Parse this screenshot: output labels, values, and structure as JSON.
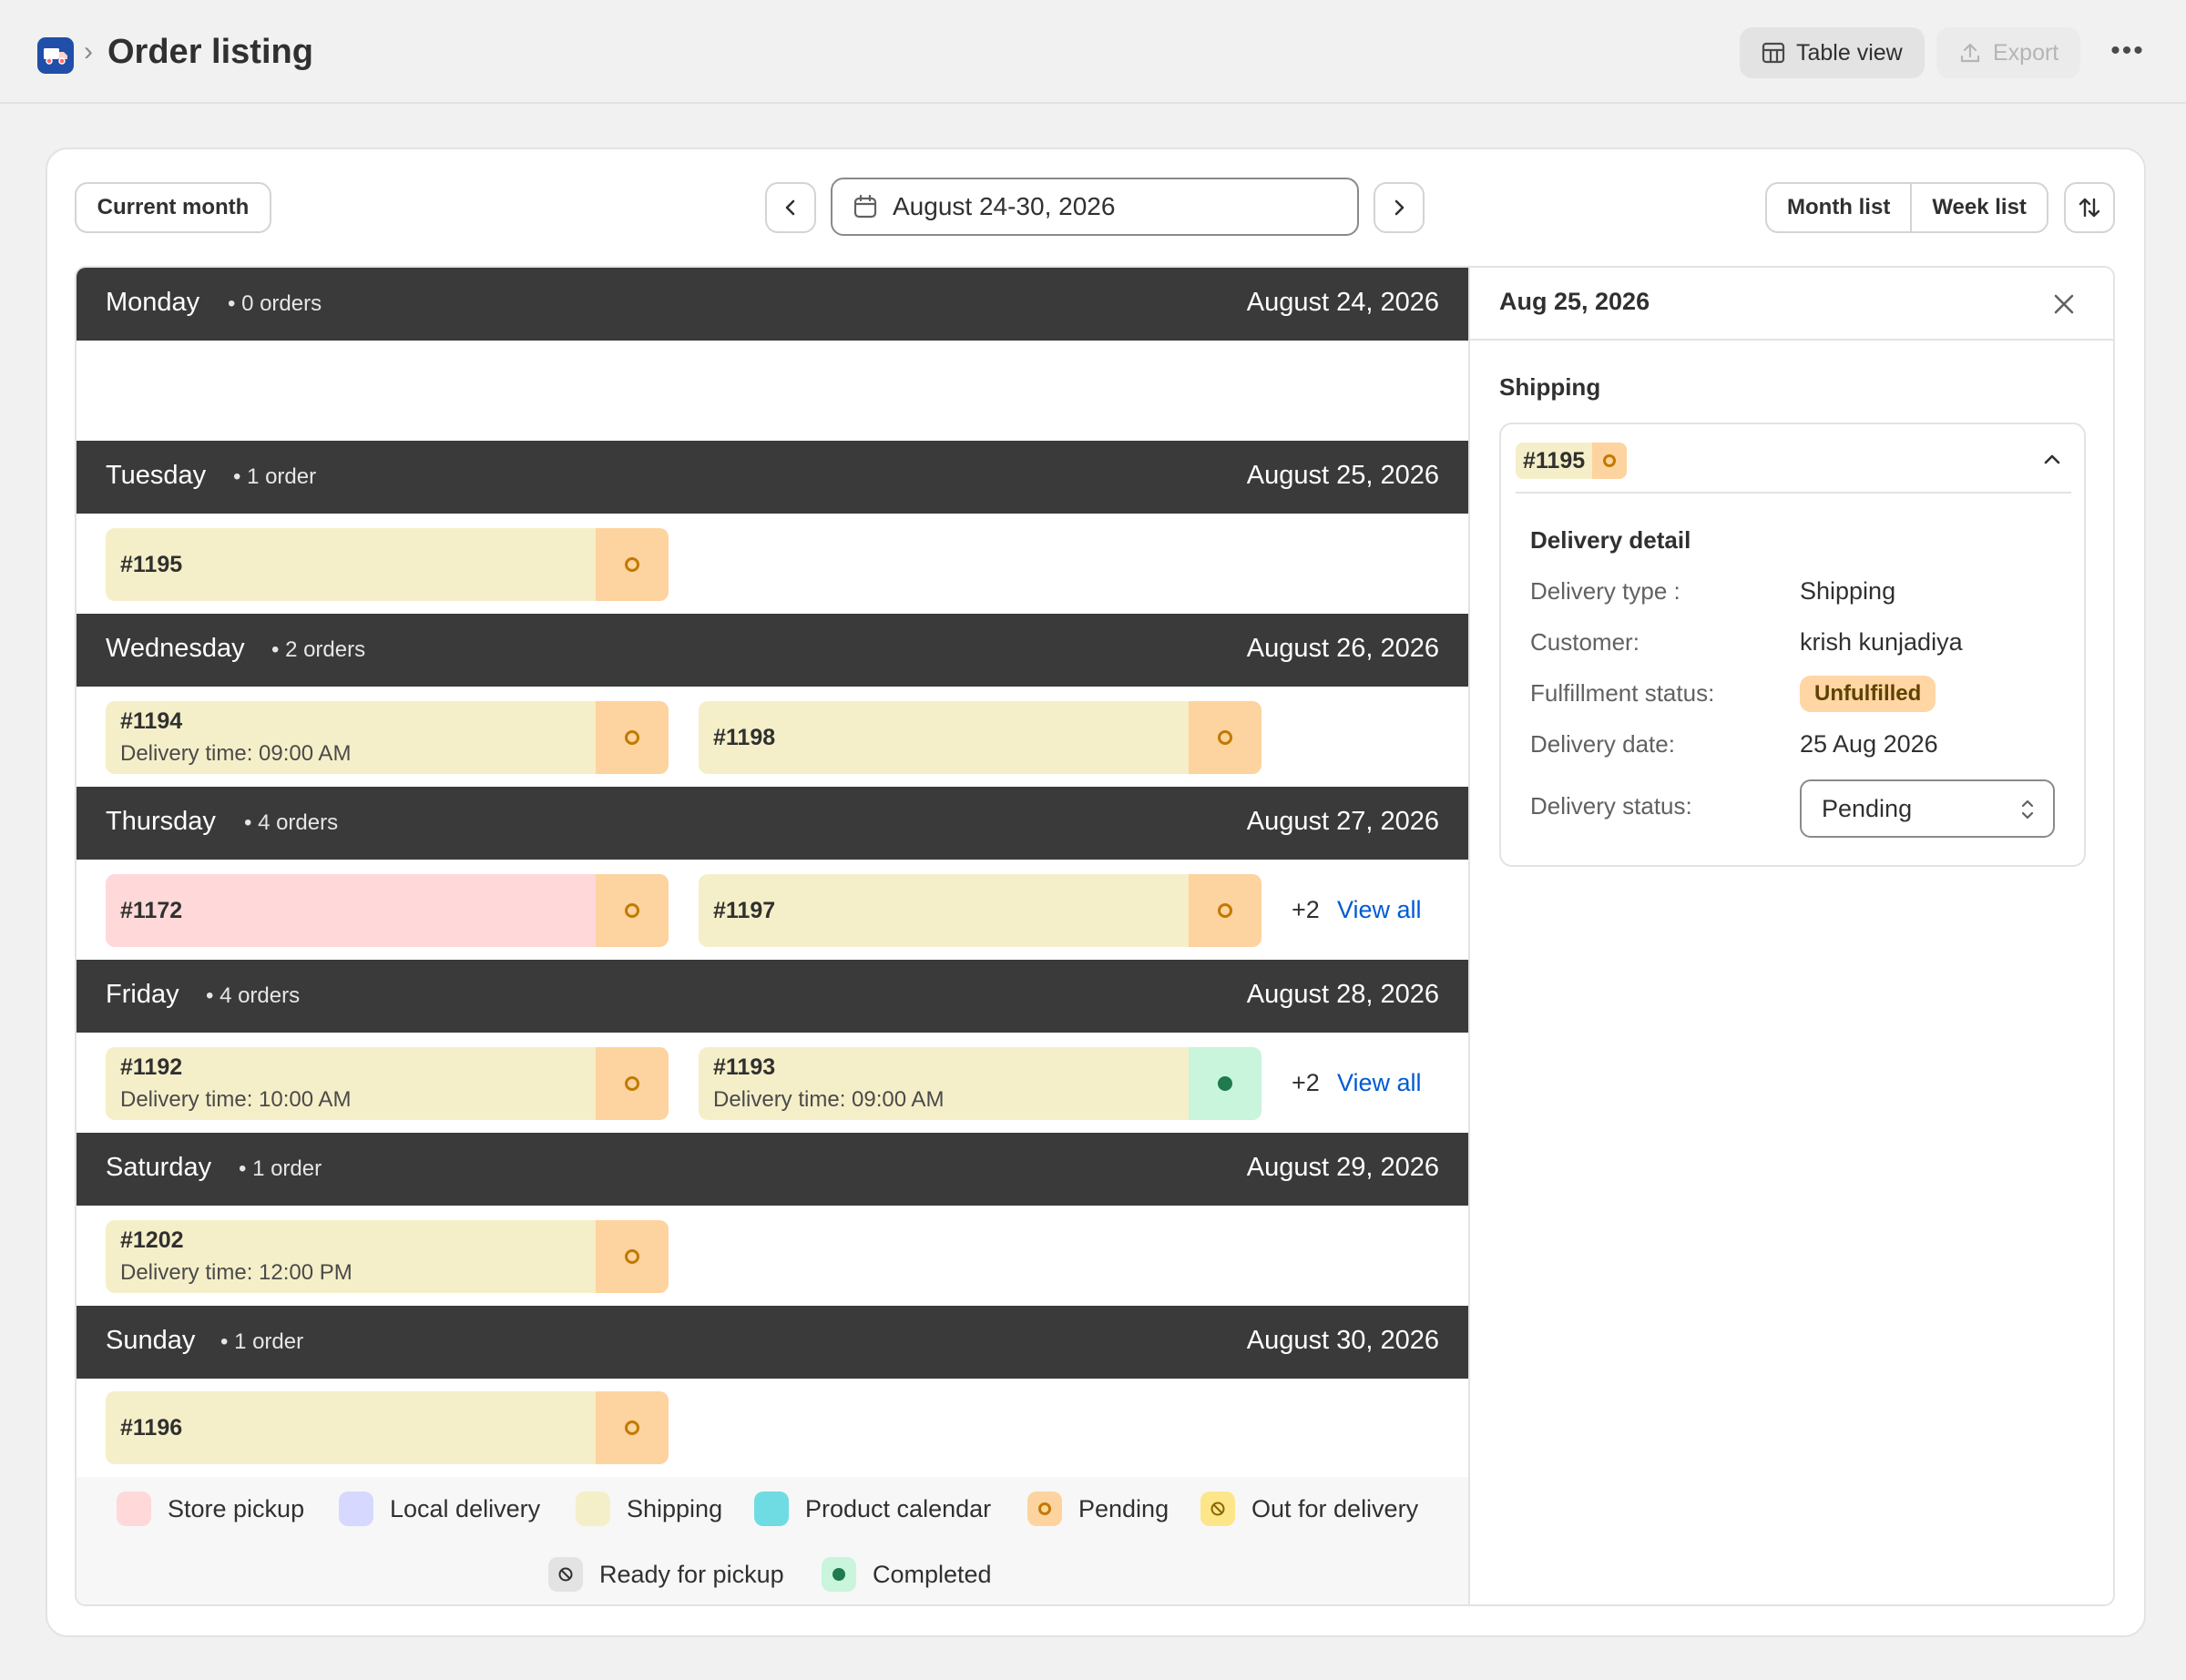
{
  "header": {
    "title": "Order listing",
    "table_view_label": "Table view",
    "export_label": "Export",
    "more_label": "•••"
  },
  "toolbar": {
    "current_month_label": "Current month",
    "date_range": "August 24-30, 2026",
    "month_list_label": "Month list",
    "week_list_label": "Week list"
  },
  "days": [
    {
      "name": "Monday",
      "count": "• 0 orders",
      "date": "August 24, 2026"
    },
    {
      "name": "Tuesday",
      "count": "• 1 order",
      "date": "August 25, 2026"
    },
    {
      "name": "Wednesday",
      "count": "• 2 orders",
      "date": "August 26, 2026"
    },
    {
      "name": "Thursday",
      "count": "• 4 orders",
      "date": "August 27, 2026"
    },
    {
      "name": "Friday",
      "count": "• 4 orders",
      "date": "August 28, 2026"
    },
    {
      "name": "Saturday",
      "count": "• 1 order",
      "date": "August 29, 2026"
    },
    {
      "name": "Sunday",
      "count": "• 1 order",
      "date": "August 30, 2026"
    }
  ],
  "orders": {
    "o1195": {
      "id": "#1195"
    },
    "o1194": {
      "id": "#1194",
      "time": "Delivery time: 09:00 AM"
    },
    "o1198": {
      "id": "#1198"
    },
    "o1172": {
      "id": "#1172"
    },
    "o1197": {
      "id": "#1197"
    },
    "o1192": {
      "id": "#1192",
      "time": "Delivery time: 10:00 AM"
    },
    "o1193": {
      "id": "#1193",
      "time": "Delivery time: 09:00 AM"
    },
    "o1202": {
      "id": "#1202",
      "time": "Delivery time: 12:00 PM"
    },
    "o1196": {
      "id": "#1196"
    }
  },
  "overflow": {
    "thursday_more": "+2",
    "friday_more": "+2",
    "view_all_label": "View all"
  },
  "legend": {
    "store_pickup": "Store pickup",
    "local_delivery": "Local delivery",
    "shipping": "Shipping",
    "product_calendar": "Product calendar",
    "pending": "Pending",
    "out_for_delivery": "Out for delivery",
    "ready_for_pickup": "Ready for pickup",
    "completed": "Completed"
  },
  "detail": {
    "date": "Aug 25, 2026",
    "section": "Shipping",
    "order_id": "#1195",
    "subtitle": "Delivery detail",
    "delivery_type_label": "Delivery type :",
    "delivery_type": "Shipping",
    "customer_label": "Customer:",
    "customer": "krish kunjadiya",
    "fulfillment_label": "Fulfillment status:",
    "fulfillment": "Unfulfilled",
    "delivery_date_label": "Delivery date:",
    "delivery_date": "25 Aug 2026",
    "delivery_status_label": "Delivery status:",
    "delivery_status": "Pending"
  },
  "colors": {
    "store_pickup": "#ffd9d9",
    "local_delivery": "#d6d8ff",
    "shipping": "#f5efc9",
    "product_calendar": "#6fdce3",
    "pending": "#fdd39f",
    "out_for_delivery": "#fde68a",
    "ready_for_pickup": "#e3e3e3",
    "completed": "#c8f5dc",
    "link": "#005bd3"
  }
}
